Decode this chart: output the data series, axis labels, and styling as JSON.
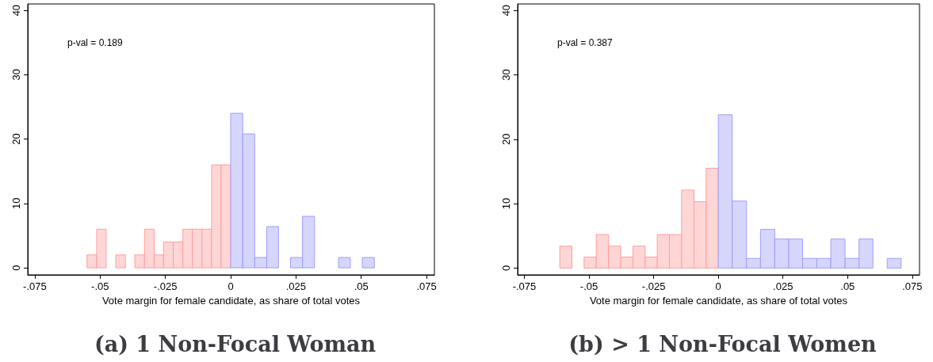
{
  "chart_data": [
    {
      "type": "histogram",
      "title": "(a) 1 Non-Focal Woman",
      "xlabel": "Vote margin for female candidate, as share of total votes",
      "annotations": [
        "p-val = 0.189"
      ],
      "xlim": [
        -0.0777,
        0.078
      ],
      "ylim": [
        -1.1,
        41
      ],
      "xticks": [
        {
          "value": -0.075,
          "label": "-.075"
        },
        {
          "value": -0.05,
          "label": "-.05"
        },
        {
          "value": -0.025,
          "label": "-.025"
        },
        0,
        {
          "value": 0.025,
          "label": ".025"
        },
        {
          "value": 0.05,
          "label": ".05"
        },
        {
          "value": 0.075,
          "label": ".075"
        }
      ],
      "yticks": [
        0,
        10,
        20,
        30,
        40
      ],
      "grid": false,
      "bins": [
        -0.055,
        -0.0513,
        -0.0477,
        -0.044,
        -0.0403,
        -0.0367,
        -0.033,
        -0.0293,
        -0.0257,
        -0.022,
        -0.0183,
        -0.0147,
        -0.011,
        -0.0073,
        -0.0037,
        0,
        0.0046,
        0.0092,
        0.0138,
        0.0183,
        0.0229,
        0.0275,
        0.0321,
        0.0413,
        0.0458,
        0.0504,
        0.055
      ],
      "values": [
        2,
        6,
        0,
        2,
        0,
        2,
        6,
        2,
        4,
        4,
        6,
        6,
        6,
        16,
        16,
        24,
        20.8,
        1.6,
        6.4,
        0,
        1.6,
        8,
        0,
        1.6,
        0,
        1.6
      ],
      "colors": [
        "#ffd6d6",
        "#ffd6d6",
        "#ffd6d6",
        "#ffd6d6",
        "#ffd6d6",
        "#ffd6d6",
        "#ffd6d6",
        "#ffd6d6",
        "#ffd6d6",
        "#ffd6d6",
        "#ffd6d6",
        "#ffd6d6",
        "#ffd6d6",
        "#ffd6d6",
        "#ffd6d6",
        "#d6d6fc",
        "#d6d6fc",
        "#d6d6fc",
        "#d6d6fc",
        "#d6d6fc",
        "#d6d6fc",
        "#d6d6fc",
        "#d6d6fc",
        "#d6d6fc",
        "#d6d6fc",
        "#d6d6fc"
      ]
    },
    {
      "type": "histogram",
      "title": "(b) > 1 Non-Focal Women",
      "xlabel": "Vote margin for female candidate, as share of total votes",
      "annotations": [
        "p-val = 0.387"
      ],
      "xlim": [
        -0.0776,
        0.0778
      ],
      "ylim": [
        -1.06,
        41
      ],
      "xticks": [
        {
          "value": -0.075,
          "label": "-.075"
        },
        {
          "value": -0.05,
          "label": "-.05"
        },
        {
          "value": -0.025,
          "label": "-.025"
        },
        0,
        {
          "value": 0.025,
          "label": ".025"
        },
        {
          "value": 0.05,
          "label": ".05"
        },
        {
          "value": 0.075,
          "label": ".075"
        }
      ],
      "yticks": [
        0,
        10,
        20,
        30,
        40
      ],
      "grid": false,
      "bins": [
        -0.0613,
        -0.0566,
        -0.0519,
        -0.0472,
        -0.0424,
        -0.0377,
        -0.033,
        -0.0283,
        -0.0236,
        -0.0189,
        -0.0142,
        -0.0094,
        -0.0047,
        0,
        0.0054,
        0.0109,
        0.0163,
        0.0218,
        0.0272,
        0.0326,
        0.0381,
        0.0435,
        0.049,
        0.0544,
        0.0598,
        0.0653,
        0.0707
      ],
      "values": [
        3.4,
        0,
        1.7,
        5.2,
        3.4,
        1.7,
        3.4,
        1.7,
        5.2,
        5.2,
        12.1,
        10.3,
        15.5,
        23.8,
        10.4,
        1.5,
        6,
        4.5,
        4.5,
        1.5,
        1.5,
        4.5,
        1.5,
        4.5,
        0,
        1.5
      ],
      "colors": [
        "#ffd6d6",
        "#ffd6d6",
        "#ffd6d6",
        "#ffd6d6",
        "#ffd6d6",
        "#ffd6d6",
        "#ffd6d6",
        "#ffd6d6",
        "#ffd6d6",
        "#ffd6d6",
        "#ffd6d6",
        "#ffd6d6",
        "#ffd6d6",
        "#d6d6fc",
        "#d6d6fc",
        "#d6d6fc",
        "#d6d6fc",
        "#d6d6fc",
        "#d6d6fc",
        "#d6d6fc",
        "#d6d6fc",
        "#d6d6fc",
        "#d6d6fc",
        "#d6d6fc",
        "#d6d6fc",
        "#d6d6fc"
      ]
    }
  ]
}
